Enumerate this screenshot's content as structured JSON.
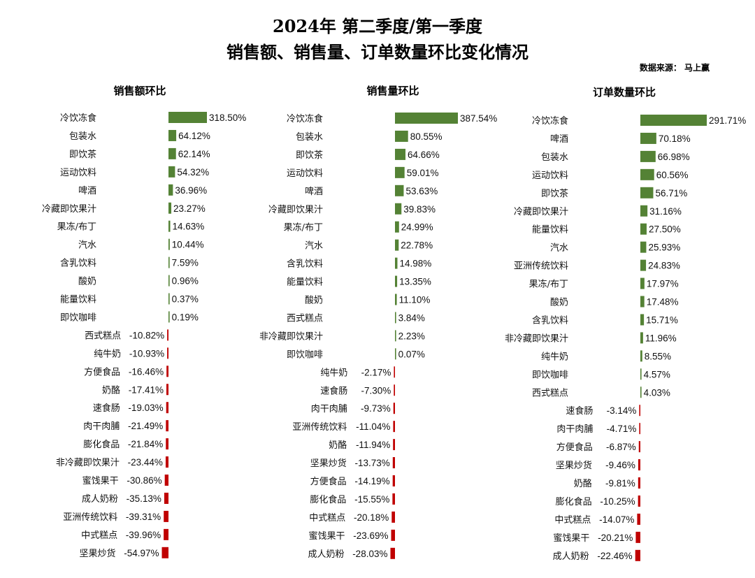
{
  "title_line1": "2024年 第二季度/第一季度",
  "title_line2": "销售额、销售量、订单数量环比变化情况",
  "source": "数据来源： 马上赢",
  "colors": {
    "positive": "#548235",
    "negative": "#c00000"
  },
  "chart_data": [
    {
      "type": "bar",
      "orientation": "horizontal",
      "title": "销售额环比",
      "categories": [
        "冷饮冻食",
        "包装水",
        "即饮茶",
        "运动饮料",
        "啤酒",
        "冷藏即饮果汁",
        "果冻/布丁",
        "汽水",
        "含乳饮料",
        "酸奶",
        "能量饮料",
        "即饮咖啡",
        "西式糕点",
        "纯牛奶",
        "方便食品",
        "奶酪",
        "速食肠",
        "肉干肉脯",
        "膨化食品",
        "非冷藏即饮果汁",
        "蜜饯果干",
        "成人奶粉",
        "亚洲传统饮料",
        "中式糕点",
        "坚果炒货"
      ],
      "values": [
        318.5,
        64.12,
        62.14,
        54.32,
        36.96,
        23.27,
        14.63,
        10.44,
        7.59,
        0.96,
        0.37,
        0.19,
        -10.82,
        -10.93,
        -16.46,
        -17.41,
        -19.03,
        -21.49,
        -21.84,
        -23.44,
        -30.86,
        -35.13,
        -39.31,
        -39.96,
        -54.97
      ],
      "labels": [
        "318.50%",
        "64.12%",
        "62.14%",
        "54.32%",
        "36.96%",
        "23.27%",
        "14.63%",
        "10.44%",
        "7.59%",
        "0.96%",
        "0.37%",
        "0.19%",
        "-10.82%",
        "-10.93%",
        "-16.46%",
        "-17.41%",
        "-19.03%",
        "-21.49%",
        "-21.84%",
        "-23.44%",
        "-30.86%",
        "-35.13%",
        "-39.31%",
        "-39.96%",
        "-54.97%"
      ],
      "unit": "%"
    },
    {
      "type": "bar",
      "orientation": "horizontal",
      "title": "销售量环比",
      "categories": [
        "冷饮冻食",
        "包装水",
        "即饮茶",
        "运动饮料",
        "啤酒",
        "冷藏即饮果汁",
        "果冻/布丁",
        "汽水",
        "含乳饮料",
        "能量饮料",
        "酸奶",
        "西式糕点",
        "非冷藏即饮果汁",
        "即饮咖啡",
        "纯牛奶",
        "速食肠",
        "肉干肉脯",
        "亚洲传统饮料",
        "奶酪",
        "坚果炒货",
        "方便食品",
        "膨化食品",
        "中式糕点",
        "蜜饯果干",
        "成人奶粉"
      ],
      "values": [
        387.54,
        80.55,
        64.66,
        59.01,
        53.63,
        39.83,
        24.99,
        22.78,
        14.98,
        13.35,
        11.1,
        3.84,
        2.23,
        0.07,
        -2.17,
        -7.3,
        -9.73,
        -11.04,
        -11.94,
        -13.73,
        -14.19,
        -15.55,
        -20.18,
        -23.69,
        -28.03
      ],
      "labels": [
        "387.54%",
        "80.55%",
        "64.66%",
        "59.01%",
        "53.63%",
        "39.83%",
        "24.99%",
        "22.78%",
        "14.98%",
        "13.35%",
        "11.10%",
        "3.84%",
        "2.23%",
        "0.07%",
        "-2.17%",
        "-7.30%",
        "-9.73%",
        "-11.04%",
        "-11.94%",
        "-13.73%",
        "-14.19%",
        "-15.55%",
        "-20.18%",
        "-23.69%",
        "-28.03%"
      ],
      "unit": "%"
    },
    {
      "type": "bar",
      "orientation": "horizontal",
      "title": "订单数量环比",
      "categories": [
        "冷饮冻食",
        "啤酒",
        "包装水",
        "运动饮料",
        "即饮茶",
        "冷藏即饮果汁",
        "能量饮料",
        "汽水",
        "亚洲传统饮料",
        "果冻/布丁",
        "酸奶",
        "含乳饮料",
        "非冷藏即饮果汁",
        "纯牛奶",
        "即饮咖啡",
        "西式糕点",
        "速食肠",
        "肉干肉脯",
        "方便食品",
        "坚果炒货",
        "奶酪",
        "膨化食品",
        "中式糕点",
        "蜜饯果干",
        "成人奶粉"
      ],
      "values": [
        291.71,
        70.18,
        66.98,
        60.56,
        56.71,
        31.16,
        27.5,
        25.93,
        24.83,
        17.97,
        17.48,
        15.71,
        11.96,
        8.55,
        4.57,
        4.03,
        -3.14,
        -4.71,
        -6.87,
        -9.46,
        -9.81,
        -10.25,
        -14.07,
        -20.21,
        -22.46
      ],
      "labels": [
        "291.71%",
        "70.18%",
        "66.98%",
        "60.56%",
        "56.71%",
        "31.16%",
        "27.50%",
        "25.93%",
        "24.83%",
        "17.97%",
        "17.48%",
        "15.71%",
        "11.96%",
        "8.55%",
        "4.57%",
        "4.03%",
        "-3.14%",
        "-4.71%",
        "-6.87%",
        "-9.46%",
        "-9.81%",
        "-10.25%",
        "-14.07%",
        "-20.21%",
        "-22.46%"
      ],
      "unit": "%"
    }
  ]
}
